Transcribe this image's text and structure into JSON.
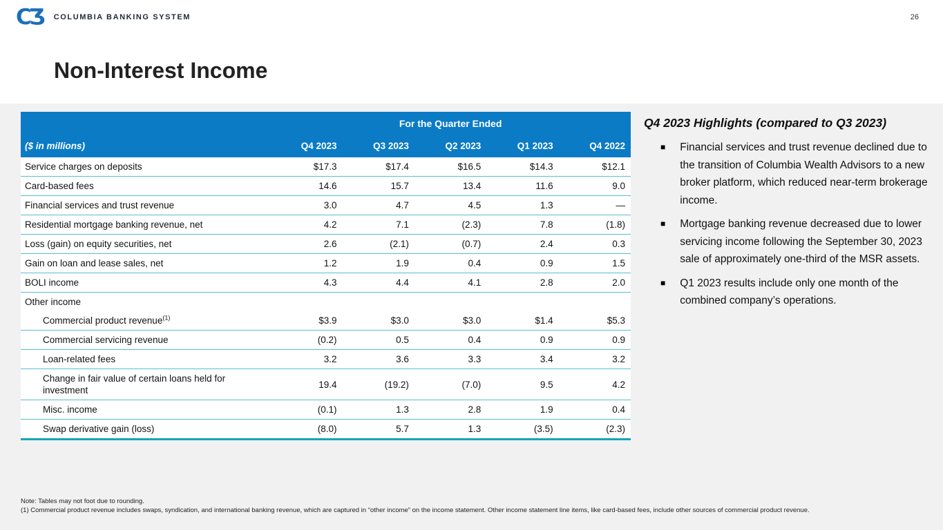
{
  "page_number": "26",
  "logo": {
    "monogram": "CƷ",
    "company": "COLUMBIA BANKING SYSTEM"
  },
  "title": "Non-Interest Income",
  "table": {
    "span_header": "For the Quarter Ended",
    "unit_label": "($ in millions)",
    "columns": [
      "Q4 2023",
      "Q3 2023",
      "Q2 2023",
      "Q1 2023",
      "Q4 2022"
    ],
    "rows": [
      {
        "label": "Service charges on deposits",
        "values": [
          "$17.3",
          "$17.4",
          "$16.5",
          "$14.3",
          "$12.1"
        ]
      },
      {
        "label": "Card-based fees",
        "values": [
          "14.6",
          "15.7",
          "13.4",
          "11.6",
          "9.0"
        ]
      },
      {
        "label": "Financial services and trust revenue",
        "values": [
          "3.0",
          "4.7",
          "4.5",
          "1.3",
          "—"
        ]
      },
      {
        "label": "Residential mortgage banking revenue, net",
        "values": [
          "4.2",
          "7.1",
          "(2.3)",
          "7.8",
          "(1.8)"
        ]
      },
      {
        "label": "Loss (gain) on equity securities, net",
        "values": [
          "2.6",
          "(2.1)",
          "(0.7)",
          "2.4",
          "0.3"
        ]
      },
      {
        "label": "Gain on loan and lease sales, net",
        "values": [
          "1.2",
          "1.9",
          "0.4",
          "0.9",
          "1.5"
        ]
      },
      {
        "label": "BOLI income",
        "values": [
          "4.3",
          "4.4",
          "4.1",
          "2.8",
          "2.0"
        ]
      },
      {
        "label": "Other income",
        "group": true,
        "values": [
          "",
          "",
          "",
          "",
          ""
        ]
      },
      {
        "label": "Commercial product revenue",
        "sup": "(1)",
        "indent": true,
        "values": [
          "$3.9",
          "$3.0",
          "$3.0",
          "$1.4",
          "$5.3"
        ]
      },
      {
        "label": "Commercial servicing revenue",
        "indent": true,
        "values": [
          "(0.2)",
          "0.5",
          "0.4",
          "0.9",
          "0.9"
        ]
      },
      {
        "label": "Loan-related fees",
        "indent": true,
        "values": [
          "3.2",
          "3.6",
          "3.3",
          "3.4",
          "3.2"
        ]
      },
      {
        "label": "Change in fair value of certain loans held for investment",
        "indent": true,
        "values": [
          "19.4",
          "(19.2)",
          "(7.0)",
          "9.5",
          "4.2"
        ]
      },
      {
        "label": "Misc. income",
        "indent": true,
        "values": [
          "(0.1)",
          "1.3",
          "2.8",
          "1.9",
          "0.4"
        ]
      },
      {
        "label": "Swap derivative gain (loss)",
        "indent": true,
        "values": [
          "(8.0)",
          "5.7",
          "1.3",
          "(3.5)",
          "(2.3)"
        ]
      }
    ]
  },
  "highlights": {
    "title": "Q4 2023 Highlights (compared to Q3 2023)",
    "bullet_glyph": "■",
    "bullets": [
      "Financial services and trust revenue declined due to the transition of Columbia Wealth Advisors to a new broker platform, which reduced near-term brokerage income.",
      "Mortgage banking revenue decreased due to lower servicing income following the September 30, 2023 sale of approximately one-third of the MSR assets.",
      "Q1 2023 results include only one month of the combined company’s operations."
    ]
  },
  "footnotes": {
    "note": "Note: Tables may not foot due to rounding.",
    "item1": "(1)  Commercial product revenue includes swaps, syndication, and international banking revenue, which are captured in “other income” on the income statement. Other income statement line items, like card-based fees, include other sources of commercial product revenue."
  },
  "colors": {
    "header_blue": "#0b7bc6",
    "divider_teal": "#55bfcc",
    "table_bottom_teal": "#14a5ba",
    "logo_blue": "#1b6fb8",
    "body_gray": "#f1f1f2"
  }
}
